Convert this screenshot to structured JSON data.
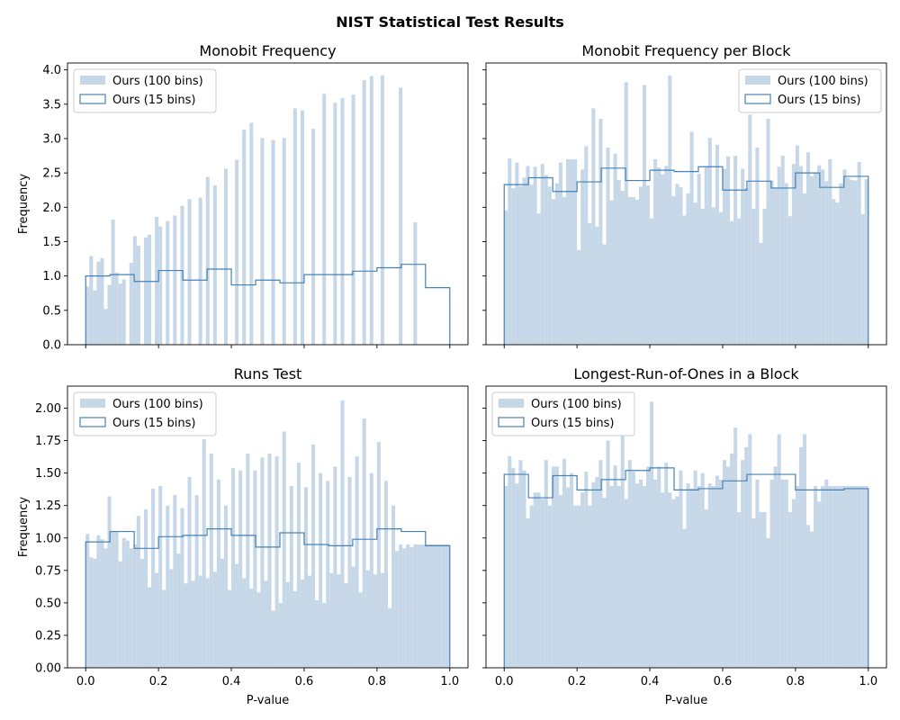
{
  "figure": {
    "title": "NIST Statistical Test Results"
  },
  "colors": {
    "hist_fill": "#c6d7e8",
    "step_line": "#4682b4",
    "axis": "#000000"
  },
  "chart_data": [
    {
      "type": "bar",
      "title": "Monobit Frequency",
      "xlabel": "",
      "ylabel": "Frequency",
      "xlim": [
        -0.05,
        1.05
      ],
      "ylim": [
        0,
        4.1
      ],
      "yticks": [
        0,
        0.5,
        1.0,
        1.5,
        2.0,
        2.5,
        3.0,
        3.5,
        4.0
      ],
      "ytick_labels": [
        "0.0",
        "0.5",
        "1.0",
        "1.5",
        "2.0",
        "2.5",
        "3.0",
        "3.5",
        "4.0"
      ],
      "xticks": [
        0,
        0.2,
        0.4,
        0.6,
        0.8,
        1.0
      ],
      "xtick_labels": [
        "",
        "",
        "",
        "",
        "",
        ""
      ],
      "legend": {
        "position": "upper left",
        "entries": [
          "Ours (100 bins)",
          "Ours (15 bins)"
        ]
      },
      "hist100": [
        0.85,
        1.29,
        0.79,
        1.21,
        1.26,
        0.52,
        0.87,
        1.82,
        1.05,
        0.89,
        0.95,
        0,
        1.19,
        1.58,
        1.44,
        0,
        1.56,
        1.6,
        0,
        1.86,
        1.72,
        0,
        1.8,
        0,
        1.88,
        0,
        2.02,
        0,
        2.12,
        0,
        0,
        2.14,
        0,
        2.44,
        0,
        2.32,
        0,
        0,
        2.56,
        0,
        0,
        2.69,
        0,
        3.13,
        0,
        3.23,
        0,
        0,
        3.01,
        0,
        0,
        2.98,
        0,
        0,
        3.01,
        0,
        0,
        3.44,
        0,
        3.41,
        0,
        0,
        3.14,
        0,
        0,
        3.65,
        0,
        0,
        3.52,
        0,
        3.59,
        0,
        0,
        3.64,
        0,
        0,
        3.85,
        0,
        3.91,
        0,
        0,
        3.92,
        0,
        0,
        0,
        0,
        3.74,
        0,
        0,
        0,
        1.78,
        0,
        0,
        0,
        0,
        0,
        0,
        0,
        0,
        0
      ],
      "hist15": [
        1.0,
        1.02,
        0.92,
        1.08,
        0.94,
        1.1,
        0.87,
        0.94,
        0.9,
        1.02,
        1.02,
        1.07,
        1.12,
        1.17,
        0.83
      ]
    },
    {
      "type": "bar",
      "title": "Monobit Frequency per Block",
      "xlabel": "",
      "ylabel": "",
      "xlim": [
        -0.05,
        1.05
      ],
      "ylim": [
        0,
        4.1
      ],
      "yticks": [
        0,
        0.5,
        1.0,
        1.5,
        2.0,
        2.5,
        3.0,
        3.5,
        4.0
      ],
      "ytick_labels": [
        "",
        "",
        "",
        "",
        "",
        "",
        "",
        "",
        ""
      ],
      "xticks": [
        0,
        0.2,
        0.4,
        0.6,
        0.8,
        1.0
      ],
      "xtick_labels": [
        "",
        "",
        "",
        "",
        "",
        ""
      ],
      "legend": {
        "position": "upper right",
        "entries": [
          "Ours (100 bins)",
          "Ours (15 bins)"
        ]
      },
      "hist100": [
        1.95,
        2.71,
        2.28,
        2.65,
        2.31,
        2.43,
        2.6,
        2.33,
        2.59,
        1.91,
        2.63,
        2.47,
        2.3,
        2.12,
        2.35,
        2.65,
        2.15,
        2.7,
        2.7,
        2.7,
        1.38,
        2.55,
        2.89,
        1.77,
        3.44,
        1.72,
        3.29,
        1.46,
        2.87,
        2.1,
        2.78,
        2.4,
        2.24,
        3.82,
        2.15,
        2.15,
        2.11,
        2.3,
        3.78,
        2.32,
        1.84,
        2.7,
        2.58,
        2.48,
        2.6,
        3.92,
        2.16,
        2.34,
        2.29,
        1.88,
        2.2,
        3.1,
        2.07,
        2.49,
        1.98,
        2.6,
        3.01,
        2.0,
        2.91,
        1.93,
        2.56,
        2.74,
        1.8,
        2.75,
        1.84,
        2.56,
        2.28,
        3.35,
        1.98,
        2.87,
        1.48,
        1.98,
        3.29,
        2.39,
        2.29,
        2.59,
        2.75,
        2.35,
        1.87,
        2.63,
        2.9,
        2.6,
        2.2,
        2.8,
        2.45,
        2.5,
        2.61,
        2.55,
        2.38,
        2.7,
        2.12,
        2.07,
        2.35,
        2.55,
        2.43,
        2.4,
        2.39,
        2.66,
        1.9,
        2.41
      ],
      "hist15": [
        2.33,
        2.43,
        2.23,
        2.37,
        2.57,
        2.39,
        2.54,
        2.52,
        2.59,
        2.25,
        2.38,
        2.28,
        2.5,
        2.29,
        2.45
      ]
    },
    {
      "type": "bar",
      "title": "Runs Test",
      "xlabel": "P-value",
      "ylabel": "Frequency",
      "xlim": [
        -0.05,
        1.05
      ],
      "ylim": [
        0,
        2.17
      ],
      "yticks": [
        0,
        0.25,
        0.5,
        0.75,
        1.0,
        1.25,
        1.5,
        1.75,
        2.0
      ],
      "ytick_labels": [
        "0.00",
        "0.25",
        "0.50",
        "0.75",
        "1.00",
        "1.25",
        "1.50",
        "1.75",
        "2.00"
      ],
      "xticks": [
        0,
        0.2,
        0.4,
        0.6,
        0.8,
        1.0
      ],
      "xtick_labels": [
        "0.0",
        "0.2",
        "0.4",
        "0.6",
        "0.8",
        "1.0"
      ],
      "legend": {
        "position": "upper left",
        "entries": [
          "Ours (100 bins)",
          "Ours (15 bins)"
        ]
      },
      "hist100": [
        1.03,
        0.85,
        0.84,
        1.02,
        0.99,
        0.92,
        1.32,
        1.05,
        1.05,
        0.82,
        1.0,
        0.98,
        0.92,
        0.95,
        1.17,
        0.84,
        1.22,
        0.62,
        1.38,
        0.73,
        1.4,
        0.6,
        1.25,
        0.76,
        1.33,
        0.88,
        1.23,
        0.65,
        1.47,
        0.67,
        1.33,
        0.71,
        1.76,
        0.69,
        1.65,
        0.74,
        1.45,
        0.84,
        1.25,
        0.6,
        1.54,
        0.8,
        1.52,
        0.69,
        1.65,
        0.61,
        1.52,
        0.58,
        1.62,
        0.67,
        1.65,
        0.44,
        1.63,
        0.5,
        1.82,
        0.66,
        1.4,
        0.59,
        1.58,
        0.68,
        1.39,
        0.71,
        1.72,
        0.52,
        1.5,
        0.5,
        1.44,
        0.73,
        1.55,
        0.72,
        2.06,
        0.65,
        1.47,
        0.78,
        1.63,
        0.58,
        1.92,
        0.75,
        1.5,
        0.72,
        1.74,
        0.73,
        1.44,
        0.46,
        1.25,
        0.9,
        0.95,
        0.92,
        0.95,
        0.93,
        0.95,
        0.95,
        0.95,
        0.95,
        0.95,
        0.95,
        0.95,
        0.95,
        0.95,
        0.95
      ],
      "hist15": [
        0.97,
        1.05,
        0.92,
        1.01,
        1.02,
        1.07,
        1.02,
        0.93,
        1.04,
        0.95,
        0.94,
        0.99,
        1.07,
        1.05,
        0.94
      ]
    },
    {
      "type": "bar",
      "title": "Longest-Run-of-Ones in a Block",
      "xlabel": "P-value",
      "ylabel": "",
      "xlim": [
        -0.05,
        1.05
      ],
      "ylim": [
        0,
        2.17
      ],
      "yticks": [
        0,
        0.25,
        0.5,
        0.75,
        1.0,
        1.25,
        1.5,
        1.75,
        2.0
      ],
      "ytick_labels": [
        "",
        "",
        "",
        "",
        "",
        "",
        "",
        "",
        ""
      ],
      "xticks": [
        0,
        0.2,
        0.4,
        0.6,
        0.8,
        1.0
      ],
      "xtick_labels": [
        "0.0",
        "0.2",
        "0.4",
        "0.6",
        "0.8",
        "1.0"
      ],
      "legend": {
        "position": "upper left",
        "entries": [
          "Ours (100 bins)",
          "Ours (15 bins)"
        ]
      },
      "hist100": [
        1.4,
        1.63,
        1.54,
        1.42,
        1.6,
        1.52,
        1.15,
        1.25,
        1.35,
        1.35,
        1.3,
        1.6,
        1.25,
        1.55,
        1.55,
        1.33,
        1.61,
        1.39,
        1.5,
        1.25,
        1.25,
        1.35,
        1.51,
        1.25,
        1.43,
        1.47,
        1.6,
        1.31,
        1.75,
        1.4,
        1.56,
        1.4,
        1.8,
        1.3,
        1.6,
        1.51,
        1.42,
        1.45,
        1.4,
        1.55,
        2.05,
        1.45,
        1.55,
        1.35,
        1.58,
        1.35,
        1.3,
        1.32,
        1.52,
        1.07,
        1.42,
        1.38,
        1.52,
        1.4,
        1.5,
        1.22,
        1.42,
        1.4,
        1.48,
        1.45,
        1.6,
        1.55,
        1.65,
        1.85,
        1.2,
        1.6,
        1.7,
        1.8,
        1.15,
        1.45,
        1.2,
        1.2,
        1.0,
        1.45,
        1.55,
        1.8,
        1.45,
        1.45,
        1.2,
        1.3,
        1.4,
        1.7,
        1.8,
        1.1,
        1.05,
        1.4,
        1.28,
        1.4,
        1.45,
        1.4,
        1.4,
        1.4,
        1.4,
        1.4,
        1.4,
        1.4,
        1.4,
        1.4,
        1.4,
        1.4
      ],
      "hist15": [
        1.49,
        1.31,
        1.48,
        1.37,
        1.45,
        1.52,
        1.54,
        1.37,
        1.38,
        1.44,
        1.49,
        1.49,
        1.37,
        1.37,
        1.38
      ]
    }
  ]
}
